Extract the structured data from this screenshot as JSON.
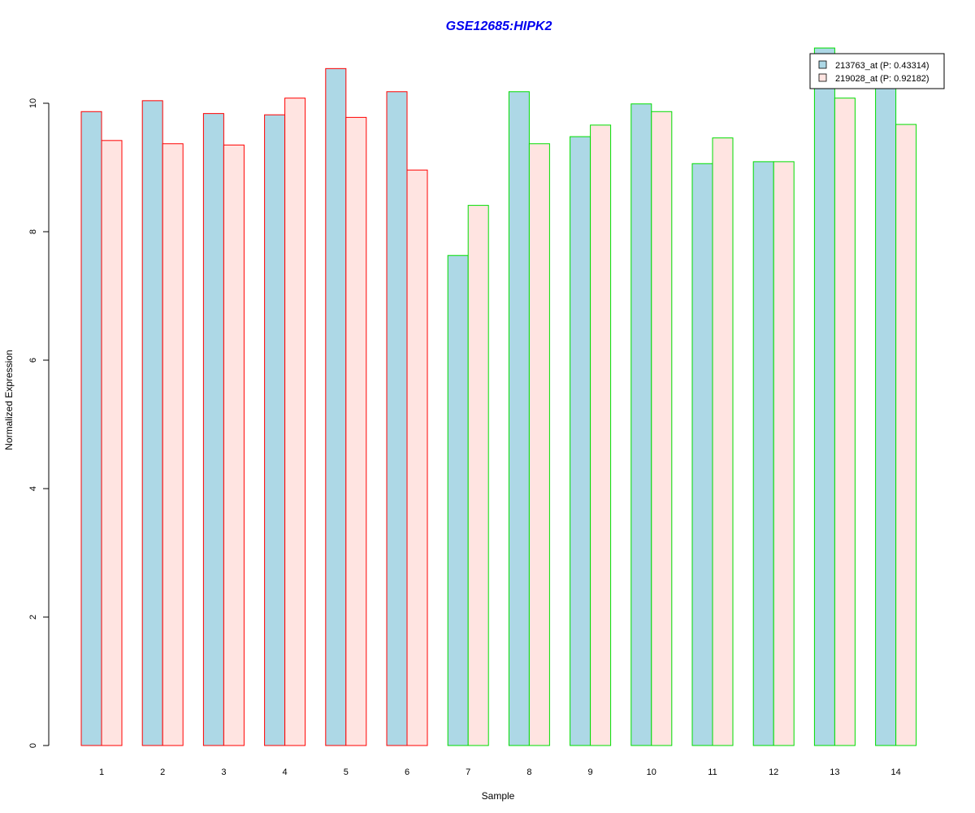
{
  "chart_data": {
    "type": "bar",
    "title": "GSE12685:HIPK2",
    "xlabel": "Sample",
    "ylabel": "Normalized Expression",
    "ylim": [
      0,
      10.9
    ],
    "yticks": [
      0,
      2,
      4,
      6,
      8,
      10
    ],
    "categories": [
      "1",
      "2",
      "3",
      "4",
      "5",
      "6",
      "7",
      "8",
      "9",
      "10",
      "11",
      "12",
      "13",
      "14"
    ],
    "group_border_colors": [
      "#ff0000",
      "#ff0000",
      "#ff0000",
      "#ff0000",
      "#ff0000",
      "#ff0000",
      "#00dd00",
      "#00dd00",
      "#00dd00",
      "#00dd00",
      "#00dd00",
      "#00dd00",
      "#00dd00",
      "#00dd00"
    ],
    "series": [
      {
        "name": "213763_at (P: 0.43314)",
        "fill": "#add8e6",
        "values": [
          9.87,
          10.04,
          9.84,
          9.82,
          10.54,
          10.18,
          7.63,
          10.18,
          9.48,
          9.99,
          9.06,
          9.09,
          10.86,
          10.4
        ]
      },
      {
        "name": "219028_at (P: 0.92182)",
        "fill": "#ffe4e1",
        "values": [
          9.42,
          9.37,
          9.35,
          10.08,
          9.78,
          8.96,
          8.41,
          9.37,
          9.66,
          9.87,
          9.46,
          9.09,
          10.08,
          9.67
        ]
      }
    ],
    "legend_position": "top-right",
    "grid": false
  }
}
